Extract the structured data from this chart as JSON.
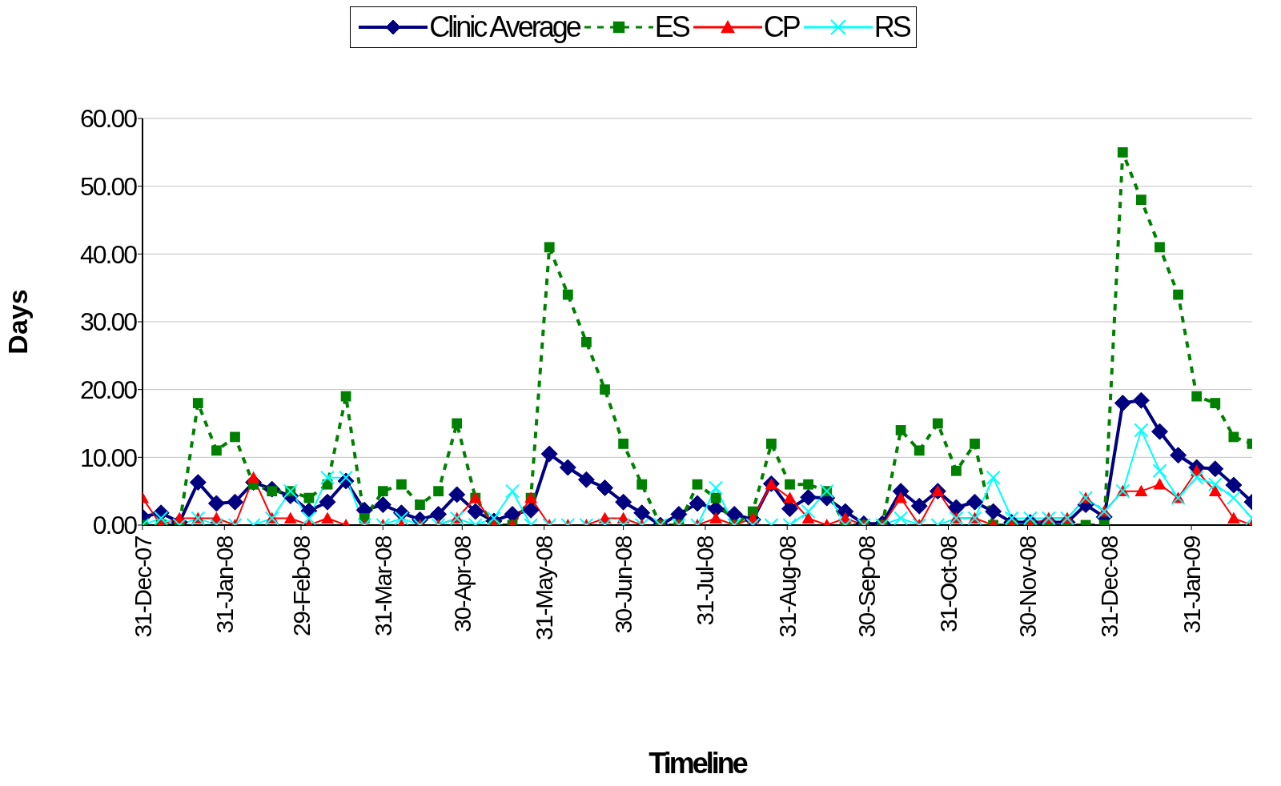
{
  "chart_data": {
    "type": "line",
    "xlabel": "Timeline",
    "ylabel": "Days",
    "x": [
      "2007-12-31",
      "2008-01-07",
      "2008-01-14",
      "2008-01-21",
      "2008-01-28",
      "2008-02-04",
      "2008-02-11",
      "2008-02-18",
      "2008-02-25",
      "2008-03-03",
      "2008-03-10",
      "2008-03-17",
      "2008-03-24",
      "2008-03-31",
      "2008-04-07",
      "2008-04-14",
      "2008-04-21",
      "2008-04-28",
      "2008-05-05",
      "2008-05-12",
      "2008-05-19",
      "2008-05-26",
      "2008-06-02",
      "2008-06-09",
      "2008-06-16",
      "2008-06-23",
      "2008-06-30",
      "2008-07-07",
      "2008-07-14",
      "2008-07-21",
      "2008-07-28",
      "2008-08-04",
      "2008-08-11",
      "2008-08-18",
      "2008-08-25",
      "2008-09-01",
      "2008-09-08",
      "2008-09-15",
      "2008-09-22",
      "2008-09-29",
      "2008-10-06",
      "2008-10-13",
      "2008-10-20",
      "2008-10-27",
      "2008-11-03",
      "2008-11-10",
      "2008-11-17",
      "2008-11-24",
      "2008-12-01",
      "2008-12-08",
      "2008-12-15",
      "2008-12-22",
      "2008-12-29",
      "2009-01-05",
      "2009-01-12",
      "2009-01-19",
      "2009-01-26",
      "2009-02-02",
      "2009-02-09",
      "2009-02-16",
      "2009-02-23"
    ],
    "series": [
      {
        "name": "Clinic Average",
        "color": "#000080",
        "marker": "diamond",
        "line_style": "solid",
        "values": [
          1.2,
          1.8,
          0.4,
          6.3,
          3.2,
          3.4,
          6.3,
          5.3,
          4.3,
          2.1,
          3.4,
          6.5,
          2.2,
          3,
          1.8,
          0.8,
          1.6,
          4.5,
          2,
          0.6,
          1.6,
          2.2,
          10.5,
          8.5,
          6.7,
          5.5,
          3.4,
          1.8,
          0,
          1.6,
          3.2,
          2.4,
          1.6,
          0.8,
          6.1,
          2.4,
          4.1,
          4,
          2,
          0.2,
          0.2,
          5,
          2.8,
          5,
          2.6,
          3.4,
          2,
          0.4,
          0.4,
          0.4,
          0.4,
          3,
          1.2,
          18,
          18.4,
          13.8,
          10.3,
          8.5,
          8.3,
          5.9,
          3.4
        ]
      },
      {
        "name": "ES",
        "color": "#008000",
        "marker": "square",
        "line_style": "dashed",
        "values": [
          0,
          0,
          0,
          18,
          11,
          13,
          6,
          5,
          5,
          4,
          6,
          19,
          1,
          5,
          6,
          3,
          5,
          15,
          4,
          0,
          0,
          4,
          41,
          34,
          27,
          20,
          12,
          6,
          0,
          0,
          6,
          4,
          0,
          2,
          12,
          6,
          6,
          5,
          0,
          0,
          0,
          14,
          11,
          15,
          8,
          12,
          0,
          0,
          0,
          0,
          0,
          0,
          0,
          55,
          48,
          41,
          34,
          19,
          18,
          13,
          12
        ]
      },
      {
        "name": "CP",
        "color": "#ff0000",
        "marker": "triangle",
        "line_style": "solid",
        "values": [
          4,
          0,
          1,
          1,
          1,
          0,
          7,
          1,
          1,
          0,
          1,
          0,
          0,
          0,
          0,
          0,
          0,
          1,
          4,
          0,
          0,
          4,
          0,
          0,
          0,
          1,
          1,
          0,
          0,
          0,
          0,
          1,
          0,
          1,
          6,
          4,
          1,
          0,
          1,
          0,
          0,
          4,
          0,
          5,
          1,
          1,
          0,
          0,
          0,
          1,
          1,
          4,
          2,
          5,
          5,
          6,
          4,
          8,
          5,
          1,
          0
        ]
      },
      {
        "name": "RS",
        "color": "#00ffff",
        "marker": "cross",
        "line_style": "solid",
        "values": [
          0,
          1,
          0,
          1,
          0,
          0,
          0,
          1,
          5,
          1,
          7,
          7,
          0,
          0,
          1,
          0,
          0,
          1,
          0,
          1,
          5,
          0,
          0,
          0,
          0,
          0,
          0,
          0,
          0,
          0,
          0,
          5.5,
          0,
          0,
          0,
          0,
          2,
          5,
          0,
          0,
          0,
          1,
          0,
          0,
          1,
          1,
          7,
          1,
          1,
          1,
          1,
          4,
          2,
          5,
          14,
          8,
          4,
          7,
          6,
          4,
          1
        ]
      }
    ],
    "xlim": [
      "2007-12-31",
      "2009-02-23"
    ],
    "xticks": [
      {
        "value": "2007-12-31",
        "label": "31-Dec-07"
      },
      {
        "value": "2008-01-31",
        "label": "31-Jan-08"
      },
      {
        "value": "2008-02-29",
        "label": "29-Feb-08"
      },
      {
        "value": "2008-03-31",
        "label": "31-Mar-08"
      },
      {
        "value": "2008-04-30",
        "label": "30-Apr-08"
      },
      {
        "value": "2008-05-31",
        "label": "31-May-08"
      },
      {
        "value": "2008-06-30",
        "label": "30-Jun-08"
      },
      {
        "value": "2008-07-31",
        "label": "31-Jul-08"
      },
      {
        "value": "2008-08-31",
        "label": "31-Aug-08"
      },
      {
        "value": "2008-09-30",
        "label": "30-Sep-08"
      },
      {
        "value": "2008-10-31",
        "label": "31-Oct-08"
      },
      {
        "value": "2008-11-30",
        "label": "30-Nov-08"
      },
      {
        "value": "2008-12-31",
        "label": "31-Dec-08"
      },
      {
        "value": "2009-01-31",
        "label": "31-Jan-09"
      }
    ],
    "ylim": [
      0,
      60
    ],
    "yticks": [
      {
        "value": 0,
        "label": "0.00"
      },
      {
        "value": 10,
        "label": "10.00"
      },
      {
        "value": 20,
        "label": "20.00"
      },
      {
        "value": 30,
        "label": "30.00"
      },
      {
        "value": 40,
        "label": "40.00"
      },
      {
        "value": 50,
        "label": "50.00"
      },
      {
        "value": 60,
        "label": "60.00"
      }
    ],
    "grid": "y",
    "legend": "top"
  }
}
